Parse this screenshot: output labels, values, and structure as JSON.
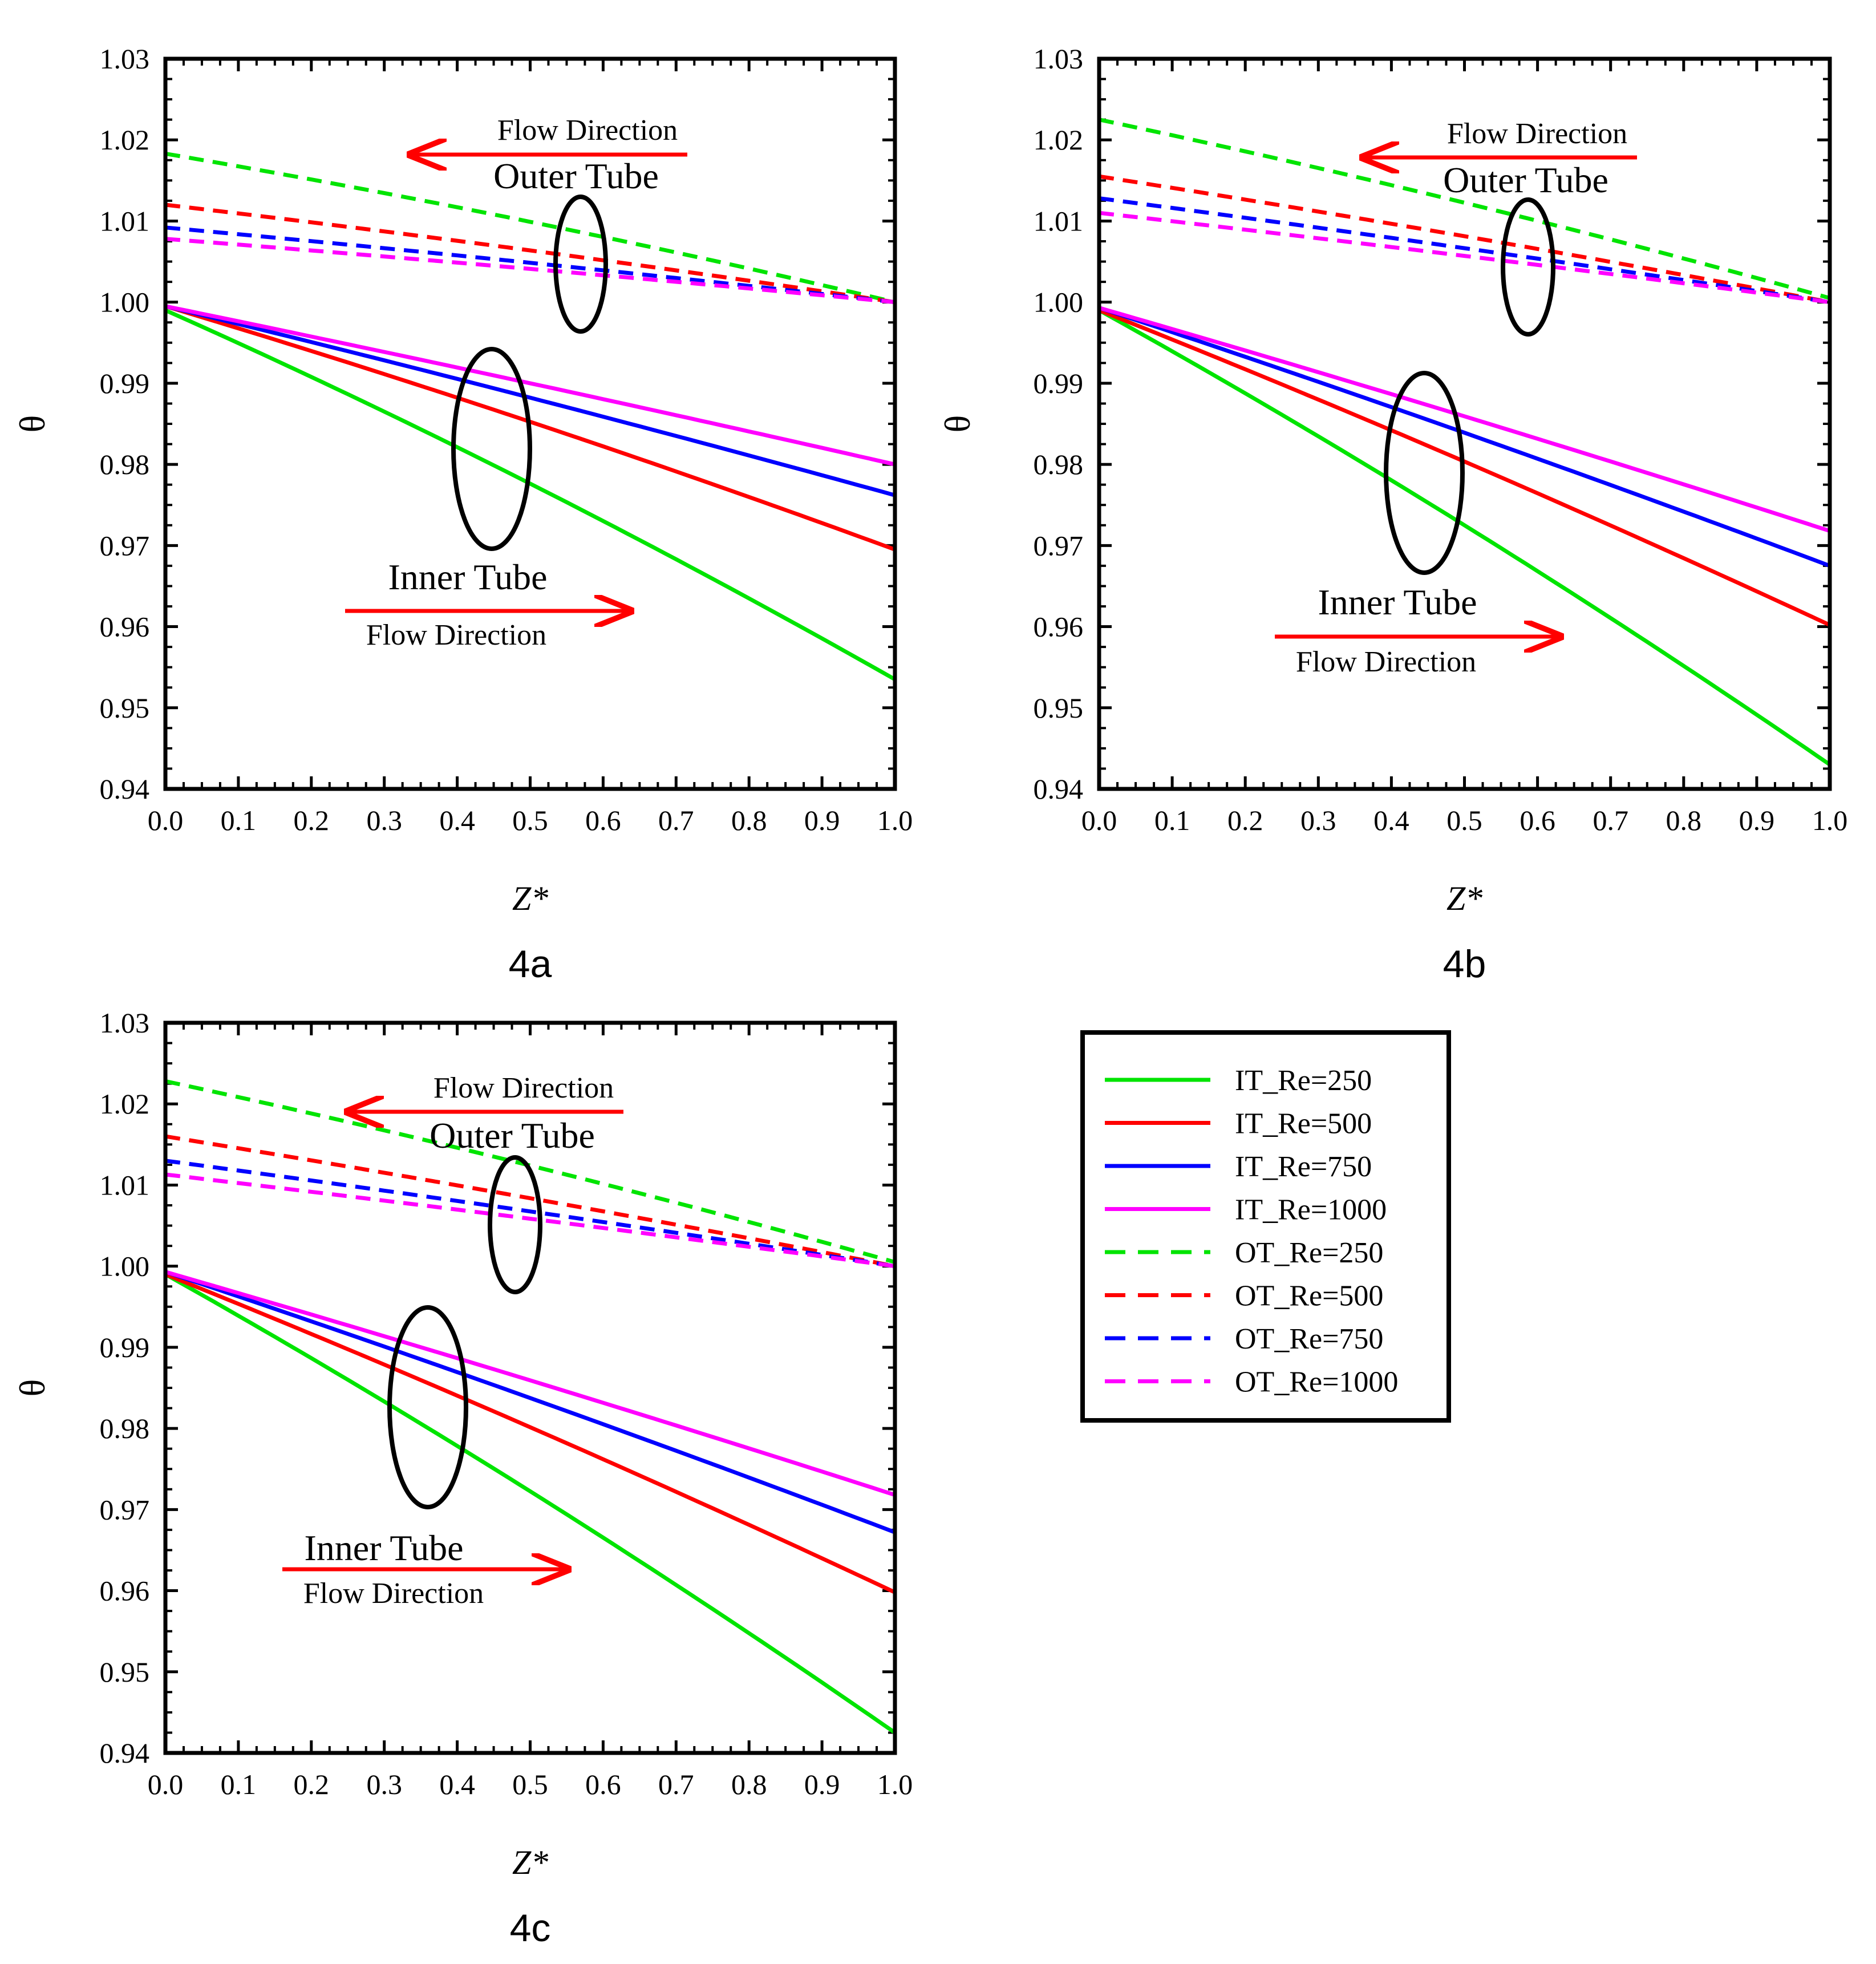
{
  "chart_data": [
    {
      "type": "line",
      "panel_label": "4a",
      "xlabel": "Z*",
      "ylabel": "θ",
      "xlim": [
        0.0,
        1.0
      ],
      "ylim": [
        0.94,
        1.03
      ],
      "x_ticks": [
        "0.0",
        "0.1",
        "0.2",
        "0.3",
        "0.4",
        "0.5",
        "0.6",
        "0.7",
        "0.8",
        "0.9",
        "1.0"
      ],
      "y_ticks": [
        "0.94",
        "0.95",
        "0.96",
        "0.97",
        "0.98",
        "0.99",
        "1.00",
        "1.01",
        "1.02",
        "1.03"
      ],
      "annotations": {
        "outer_flow": "Flow Direction",
        "outer_tube": "Outer Tube",
        "inner_tube": "Inner Tube",
        "inner_flow": "Flow Direction"
      },
      "series": [
        {
          "name": "IT_Re=250",
          "color": "#00e400",
          "dash": "solid",
          "y0": 0.999,
          "y1": 0.9535,
          "curve": 0.0055
        },
        {
          "name": "IT_Re=500",
          "color": "#ff0000",
          "dash": "solid",
          "y0": 0.9995,
          "y1": 0.9695,
          "curve": 0.003
        },
        {
          "name": "IT_Re=750",
          "color": "#0000ff",
          "dash": "solid",
          "y0": 0.9995,
          "y1": 0.9762,
          "curve": 0.0015
        },
        {
          "name": "IT_Re=1000",
          "color": "#ff00ff",
          "dash": "solid",
          "y0": 0.9995,
          "y1": 0.98,
          "curve": 0.001
        },
        {
          "name": "OT_Re=250",
          "color": "#00e400",
          "dash": "dashed",
          "y0": 1.0183,
          "y1": 1.0,
          "curve": 0.003
        },
        {
          "name": "OT_Re=500",
          "color": "#ff0000",
          "dash": "dashed",
          "y0": 1.012,
          "y1": 1.0,
          "curve": 0.0015
        },
        {
          "name": "OT_Re=750",
          "color": "#0000ff",
          "dash": "dashed",
          "y0": 1.0092,
          "y1": 1.0,
          "curve": 0.001
        },
        {
          "name": "OT_Re=1000",
          "color": "#ff00ff",
          "dash": "dashed",
          "y0": 1.0078,
          "y1": 1.0,
          "curve": 0.0008
        }
      ]
    },
    {
      "type": "line",
      "panel_label": "4b",
      "xlabel": "Z*",
      "ylabel": "θ",
      "xlim": [
        0.0,
        1.0
      ],
      "ylim": [
        0.94,
        1.03
      ],
      "x_ticks": [
        "0.0",
        "0.1",
        "0.2",
        "0.3",
        "0.4",
        "0.5",
        "0.6",
        "0.7",
        "0.8",
        "0.9",
        "1.0"
      ],
      "y_ticks": [
        "0.94",
        "0.95",
        "0.96",
        "0.97",
        "0.98",
        "0.99",
        "1.00",
        "1.01",
        "1.02",
        "1.03"
      ],
      "annotations": {
        "outer_flow": "Flow Direction",
        "outer_tube": "Outer Tube",
        "inner_tube": "Inner Tube",
        "inner_flow": "Flow Direction"
      },
      "series": [
        {
          "name": "IT_Re=250",
          "color": "#00e400",
          "dash": "solid",
          "y0": 0.999,
          "y1": 0.943,
          "curve": 0.006
        },
        {
          "name": "IT_Re=500",
          "color": "#ff0000",
          "dash": "solid",
          "y0": 0.999,
          "y1": 0.9602,
          "curve": 0.003
        },
        {
          "name": "IT_Re=750",
          "color": "#0000ff",
          "dash": "solid",
          "y0": 0.9993,
          "y1": 0.9675,
          "curve": 0.002
        },
        {
          "name": "IT_Re=1000",
          "color": "#ff00ff",
          "dash": "solid",
          "y0": 0.9993,
          "y1": 0.9718,
          "curve": 0.0015
        },
        {
          "name": "OT_Re=250",
          "color": "#00e400",
          "dash": "dashed",
          "y0": 1.0225,
          "y1": 1.0005,
          "curve": 0.003
        },
        {
          "name": "OT_Re=500",
          "color": "#ff0000",
          "dash": "dashed",
          "y0": 1.0155,
          "y1": 1.0,
          "curve": 0.0015
        },
        {
          "name": "OT_Re=750",
          "color": "#0000ff",
          "dash": "dashed",
          "y0": 1.0128,
          "y1": 1.0,
          "curve": 0.001
        },
        {
          "name": "OT_Re=1000",
          "color": "#ff00ff",
          "dash": "dashed",
          "y0": 1.011,
          "y1": 1.0,
          "curve": 0.0008
        }
      ]
    },
    {
      "type": "line",
      "panel_label": "4c",
      "xlabel": "Z*",
      "ylabel": "θ",
      "xlim": [
        0.0,
        1.0
      ],
      "ylim": [
        0.94,
        1.03
      ],
      "x_ticks": [
        "0.0",
        "0.1",
        "0.2",
        "0.3",
        "0.4",
        "0.5",
        "0.6",
        "0.7",
        "0.8",
        "0.9",
        "1.0"
      ],
      "y_ticks": [
        "0.94",
        "0.95",
        "0.96",
        "0.97",
        "0.98",
        "0.99",
        "1.00",
        "1.01",
        "1.02",
        "1.03"
      ],
      "annotations": {
        "outer_flow": "Flow Direction",
        "outer_tube": "Outer Tube",
        "inner_tube": "Inner Tube",
        "inner_flow": "Flow Direction"
      },
      "series": [
        {
          "name": "IT_Re=250",
          "color": "#00e400",
          "dash": "solid",
          "y0": 0.999,
          "y1": 0.9425,
          "curve": 0.006
        },
        {
          "name": "IT_Re=500",
          "color": "#ff0000",
          "dash": "solid",
          "y0": 0.999,
          "y1": 0.9598,
          "curve": 0.003
        },
        {
          "name": "IT_Re=750",
          "color": "#0000ff",
          "dash": "solid",
          "y0": 0.9993,
          "y1": 0.9672,
          "curve": 0.002
        },
        {
          "name": "IT_Re=1000",
          "color": "#ff00ff",
          "dash": "solid",
          "y0": 0.9993,
          "y1": 0.9718,
          "curve": 0.0015
        },
        {
          "name": "OT_Re=250",
          "color": "#00e400",
          "dash": "dashed",
          "y0": 1.0228,
          "y1": 1.0005,
          "curve": 0.003
        },
        {
          "name": "OT_Re=500",
          "color": "#ff0000",
          "dash": "dashed",
          "y0": 1.016,
          "y1": 1.0,
          "curve": 0.0015
        },
        {
          "name": "OT_Re=750",
          "color": "#0000ff",
          "dash": "dashed",
          "y0": 1.013,
          "y1": 1.0,
          "curve": 0.001
        },
        {
          "name": "OT_Re=1000",
          "color": "#ff00ff",
          "dash": "dashed",
          "y0": 1.0113,
          "y1": 1.0,
          "curve": 0.0008
        }
      ]
    }
  ],
  "legend": {
    "items": [
      {
        "label": "IT_Re=250",
        "color": "#00e400",
        "dash": "solid"
      },
      {
        "label": "IT_Re=500",
        "color": "#ff0000",
        "dash": "solid"
      },
      {
        "label": "IT_Re=750",
        "color": "#0000ff",
        "dash": "solid"
      },
      {
        "label": "IT_Re=1000",
        "color": "#ff00ff",
        "dash": "solid"
      },
      {
        "label": "OT_Re=250",
        "color": "#00e400",
        "dash": "dashed"
      },
      {
        "label": "OT_Re=500",
        "color": "#ff0000",
        "dash": "dashed"
      },
      {
        "label": "OT_Re=750",
        "color": "#0000ff",
        "dash": "dashed"
      },
      {
        "label": "OT_Re=1000",
        "color": "#ff00ff",
        "dash": "dashed"
      }
    ]
  },
  "colors": {
    "axis": "#000000",
    "arrow": "#ff0000",
    "ellipse": "#000000"
  }
}
